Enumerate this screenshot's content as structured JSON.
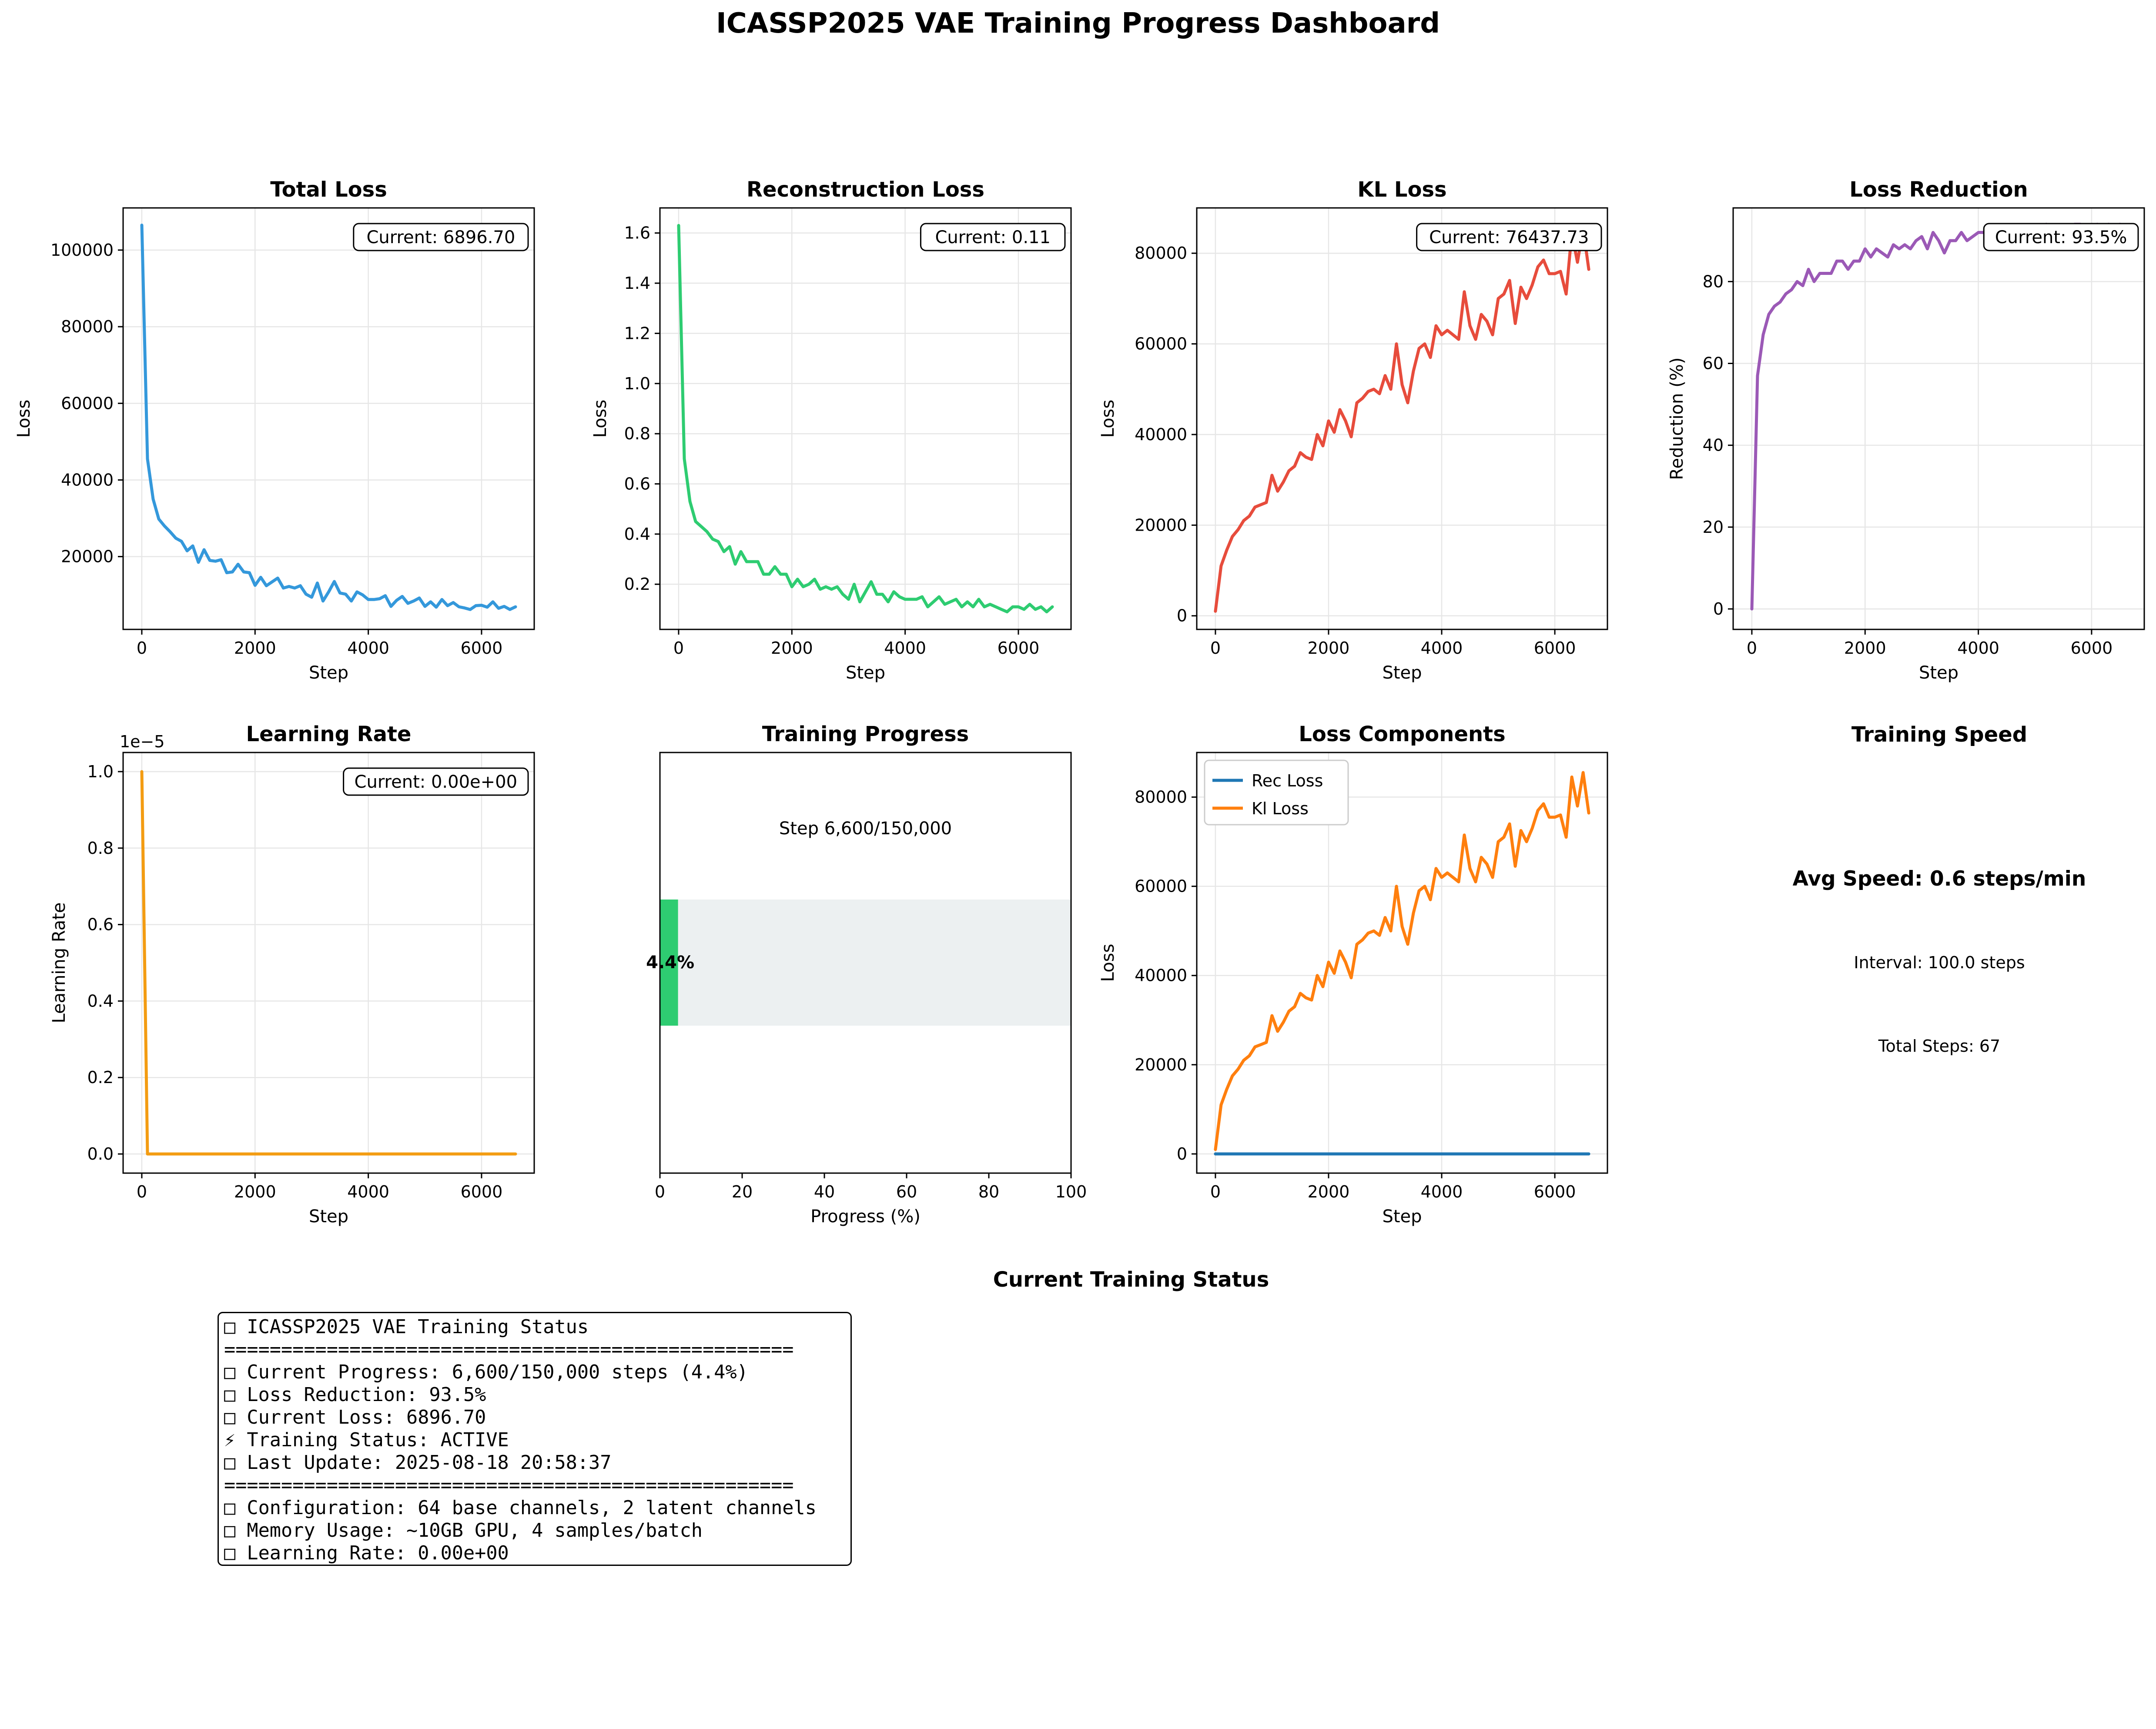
{
  "dashboard_title": "ICASSP2025 VAE Training Progress Dashboard",
  "colors": {
    "total": "#3498db",
    "reconstruction": "#2ecc71",
    "kl": "#e74c3c",
    "reduction": "#9b59b6",
    "learning_rate": "#f39c12",
    "progress_fill": "#2ecc71",
    "progress_track": "#ecf0f1",
    "rec_series": "#1f77b4",
    "kl_series": "#ff7f0e",
    "grid": "#e6e6e6"
  },
  "chart_data": [
    {
      "id": "total_loss",
      "type": "line",
      "title": "Total Loss",
      "xlabel": "Step",
      "ylabel": "Loss",
      "xlim": [
        -330,
        6930
      ],
      "ylim": [
        1000,
        111000
      ],
      "xticks": [
        0,
        2000,
        4000,
        6000
      ],
      "yticks": [
        20000,
        40000,
        60000,
        80000,
        100000
      ],
      "ytick_labels": [
        "20000",
        "40000",
        "60000",
        "80000",
        "100000"
      ],
      "grid": true,
      "annotation": "Current: 6896.70",
      "series": [
        {
          "color_key": "total",
          "x": [
            0,
            100,
            200,
            300,
            400,
            500,
            600,
            700,
            800,
            900,
            1000,
            1100,
            1200,
            1300,
            1400,
            1500,
            1600,
            1700,
            1800,
            1900,
            2000,
            2100,
            2200,
            2300,
            2400,
            2500,
            2600,
            2700,
            2800,
            2900,
            3000,
            3100,
            3200,
            3300,
            3400,
            3500,
            3600,
            3700,
            3800,
            3900,
            4000,
            4100,
            4200,
            4300,
            4400,
            4500,
            4600,
            4700,
            4800,
            4900,
            5000,
            5100,
            5200,
            5300,
            5400,
            5500,
            5600,
            5700,
            5800,
            5900,
            6000,
            6100,
            6200,
            6300,
            6400,
            6500,
            6600
          ],
          "y": [
            106500,
            45500,
            35000,
            29800,
            28000,
            26500,
            24800,
            24000,
            21500,
            22800,
            18500,
            21800,
            19000,
            18800,
            19200,
            15800,
            16000,
            18000,
            16000,
            15800,
            12500,
            14600,
            12400,
            13400,
            14400,
            11800,
            12200,
            11800,
            12400,
            10200,
            9400,
            13100,
            8400,
            10800,
            13500,
            10500,
            10200,
            8400,
            10800,
            10000,
            8800,
            8800,
            9000,
            9800,
            7000,
            8600,
            9600,
            7800,
            8400,
            9200,
            7000,
            8200,
            6800,
            8800,
            7200,
            8000,
            6900,
            6600,
            6200,
            7200,
            7300,
            6800,
            8200,
            6500,
            7000,
            6200,
            6896.7
          ]
        }
      ]
    },
    {
      "id": "reconstruction_loss",
      "type": "line",
      "title": "Reconstruction Loss",
      "xlabel": "Step",
      "ylabel": "Loss",
      "xlim": [
        -330,
        6930
      ],
      "ylim": [
        0.02,
        1.7
      ],
      "xticks": [
        0,
        2000,
        4000,
        6000
      ],
      "yticks": [
        0.2,
        0.4,
        0.6,
        0.8,
        1.0,
        1.2,
        1.4,
        1.6
      ],
      "ytick_labels": [
        "0.2",
        "0.4",
        "0.6",
        "0.8",
        "1.0",
        "1.2",
        "1.4",
        "1.6"
      ],
      "grid": true,
      "annotation": "Current: 0.11",
      "series": [
        {
          "color_key": "reconstruction",
          "x": [
            0,
            100,
            200,
            300,
            400,
            500,
            600,
            700,
            800,
            900,
            1000,
            1100,
            1200,
            1300,
            1400,
            1500,
            1600,
            1700,
            1800,
            1900,
            2000,
            2100,
            2200,
            2300,
            2400,
            2500,
            2600,
            2700,
            2800,
            2900,
            3000,
            3100,
            3200,
            3300,
            3400,
            3500,
            3600,
            3700,
            3800,
            3900,
            4000,
            4100,
            4200,
            4300,
            4400,
            4500,
            4600,
            4700,
            4800,
            4900,
            5000,
            5100,
            5200,
            5300,
            5400,
            5500,
            5600,
            5700,
            5800,
            5900,
            6000,
            6100,
            6200,
            6300,
            6400,
            6500,
            6600
          ],
          "y": [
            1.63,
            0.7,
            0.53,
            0.45,
            0.43,
            0.41,
            0.38,
            0.37,
            0.33,
            0.35,
            0.28,
            0.33,
            0.29,
            0.29,
            0.29,
            0.24,
            0.24,
            0.27,
            0.24,
            0.24,
            0.19,
            0.22,
            0.19,
            0.2,
            0.22,
            0.18,
            0.19,
            0.18,
            0.19,
            0.16,
            0.14,
            0.2,
            0.13,
            0.17,
            0.21,
            0.16,
            0.16,
            0.13,
            0.17,
            0.15,
            0.14,
            0.14,
            0.14,
            0.15,
            0.11,
            0.13,
            0.15,
            0.12,
            0.13,
            0.14,
            0.11,
            0.13,
            0.11,
            0.14,
            0.11,
            0.12,
            0.11,
            0.1,
            0.09,
            0.11,
            0.11,
            0.1,
            0.12,
            0.1,
            0.11,
            0.09,
            0.11
          ]
        }
      ]
    },
    {
      "id": "kl_loss",
      "type": "line",
      "title": "KL Loss",
      "xlabel": "Step",
      "ylabel": "Loss",
      "xlim": [
        -330,
        6930
      ],
      "ylim": [
        -3000,
        90000
      ],
      "xticks": [
        0,
        2000,
        4000,
        6000
      ],
      "yticks": [
        0,
        20000,
        40000,
        60000,
        80000
      ],
      "ytick_labels": [
        "0",
        "20000",
        "40000",
        "60000",
        "80000"
      ],
      "grid": true,
      "annotation": "Current: 76437.73",
      "series": [
        {
          "color_key": "kl",
          "x": [
            0,
            100,
            200,
            300,
            400,
            500,
            600,
            700,
            800,
            900,
            1000,
            1100,
            1200,
            1300,
            1400,
            1500,
            1600,
            1700,
            1800,
            1900,
            2000,
            2100,
            2200,
            2300,
            2400,
            2500,
            2600,
            2700,
            2800,
            2900,
            3000,
            3100,
            3200,
            3300,
            3400,
            3500,
            3600,
            3700,
            3800,
            3900,
            4000,
            4100,
            4200,
            4300,
            4400,
            4500,
            4600,
            4700,
            4800,
            4900,
            5000,
            5100,
            5200,
            5300,
            5400,
            5500,
            5600,
            5700,
            5800,
            5900,
            6000,
            6100,
            6200,
            6300,
            6400,
            6500,
            6600
          ],
          "y": [
            1000,
            11000,
            14500,
            17500,
            19000,
            21000,
            22000,
            24000,
            24500,
            25000,
            31000,
            27500,
            29500,
            32000,
            33000,
            36000,
            35000,
            34500,
            40000,
            37500,
            43000,
            40500,
            45500,
            43000,
            39500,
            47000,
            48000,
            49500,
            50000,
            49000,
            53000,
            50000,
            60000,
            51000,
            47000,
            54000,
            59000,
            60000,
            57000,
            64000,
            62000,
            63000,
            62000,
            61000,
            71500,
            64000,
            61000,
            66500,
            65000,
            62000,
            70000,
            71000,
            74000,
            64500,
            72500,
            70000,
            73000,
            77000,
            78500,
            75500,
            75500,
            76000,
            71000,
            84500,
            78000,
            85500,
            76437.73
          ]
        }
      ]
    },
    {
      "id": "loss_reduction",
      "type": "line",
      "title": "Loss Reduction",
      "xlabel": "Step",
      "ylabel": "Reduction (%)",
      "xlim": [
        -330,
        6930
      ],
      "ylim": [
        -5,
        98
      ],
      "xticks": [
        0,
        2000,
        4000,
        6000
      ],
      "yticks": [
        0,
        20,
        40,
        60,
        80
      ],
      "ytick_labels": [
        "0",
        "20",
        "40",
        "60",
        "80"
      ],
      "grid": true,
      "annotation": "Current: 93.5%",
      "series": [
        {
          "color_key": "reduction",
          "x": [
            0,
            100,
            200,
            300,
            400,
            500,
            600,
            700,
            800,
            900,
            1000,
            1100,
            1200,
            1300,
            1400,
            1500,
            1600,
            1700,
            1800,
            1900,
            2000,
            2100,
            2200,
            2300,
            2400,
            2500,
            2600,
            2700,
            2800,
            2900,
            3000,
            3100,
            3200,
            3300,
            3400,
            3500,
            3600,
            3700,
            3800,
            3900,
            4000,
            4100,
            4200,
            4300,
            4400,
            4500,
            4600,
            4700,
            4800,
            4900,
            5000,
            5100,
            5200,
            5300,
            5400,
            5500,
            5600,
            5700,
            5800,
            5900,
            6000,
            6100,
            6200,
            6300,
            6400,
            6500,
            6600
          ],
          "y": [
            0,
            57,
            67,
            72,
            74,
            75,
            77,
            78,
            80,
            79,
            83,
            80,
            82,
            82,
            82,
            85,
            85,
            83,
            85,
            85,
            88,
            86,
            88,
            87,
            86,
            89,
            88,
            89,
            88,
            90,
            91,
            88,
            92,
            90,
            87,
            90,
            90,
            92,
            90,
            91,
            92,
            92,
            92,
            91,
            93,
            92,
            91,
            93,
            92,
            91,
            93,
            92,
            94,
            92,
            93,
            92,
            93,
            94,
            94,
            93,
            93,
            94,
            92,
            94,
            93,
            94,
            93.5
          ]
        }
      ]
    },
    {
      "id": "learning_rate",
      "type": "line",
      "title": "Learning Rate",
      "xlabel": "Step",
      "ylabel": "Learning Rate",
      "offset_label": "1e−5",
      "xlim": [
        -330,
        6930
      ],
      "ylim": [
        -0.05,
        1.05
      ],
      "xticks": [
        0,
        2000,
        4000,
        6000
      ],
      "yticks": [
        0.0,
        0.2,
        0.4,
        0.6,
        0.8,
        1.0
      ],
      "ytick_labels": [
        "0.0",
        "0.2",
        "0.4",
        "0.6",
        "0.8",
        "1.0"
      ],
      "grid": true,
      "annotation": "Current: 0.00e+00",
      "series": [
        {
          "color_key": "learning_rate",
          "x": [
            0,
            100,
            6600
          ],
          "y": [
            1.0,
            0.0,
            0.0
          ]
        }
      ]
    },
    {
      "id": "training_progress",
      "type": "bar",
      "orientation": "horizontal",
      "title": "Training Progress",
      "xlabel": "Progress (%)",
      "xlim": [
        0,
        100
      ],
      "xticks": [
        0,
        20,
        40,
        60,
        80,
        100
      ],
      "value": 4.4,
      "value_label": "4.4%",
      "caption": "Step 6,600/150,000"
    },
    {
      "id": "loss_components",
      "type": "line",
      "title": "Loss Components",
      "xlabel": "Step",
      "ylabel": "Loss",
      "xlim": [
        -330,
        6930
      ],
      "ylim": [
        -4300,
        90000
      ],
      "xticks": [
        0,
        2000,
        4000,
        6000
      ],
      "yticks": [
        0,
        20000,
        40000,
        60000,
        80000
      ],
      "ytick_labels": [
        "0",
        "20000",
        "40000",
        "60000",
        "80000"
      ],
      "grid": true,
      "legend": {
        "position": "top-left",
        "entries": [
          "Rec Loss",
          "Kl Loss"
        ]
      },
      "series": [
        {
          "name": "Rec Loss",
          "color_key": "rec_series",
          "x": [
            0,
            6600
          ],
          "y": [
            0.11,
            0.11
          ]
        },
        {
          "name": "Kl Loss",
          "color_key": "kl_series",
          "source": "kl_loss"
        }
      ]
    }
  ],
  "training_speed": {
    "title": "Training Speed",
    "avg_speed": "Avg Speed: 0.6 steps/min",
    "interval": "Interval: 100.0 steps",
    "total_steps": "Total Steps: 67"
  },
  "status": {
    "heading": "Current Training Status",
    "lines": [
      "□ ICASSP2025 VAE Training Status",
      "==================================================",
      "□ Current Progress: 6,600/150,000 steps (4.4%)",
      "□ Loss Reduction: 93.5%",
      "□ Current Loss: 6896.70",
      "⚡ Training Status: ACTIVE",
      "□ Last Update: 2025-08-18 20:58:37",
      "==================================================",
      "□ Configuration: 64 base channels, 2 latent channels",
      "□ Memory Usage: ~10GB GPU, 4 samples/batch",
      "□ Learning Rate: 0.00e+00"
    ]
  }
}
